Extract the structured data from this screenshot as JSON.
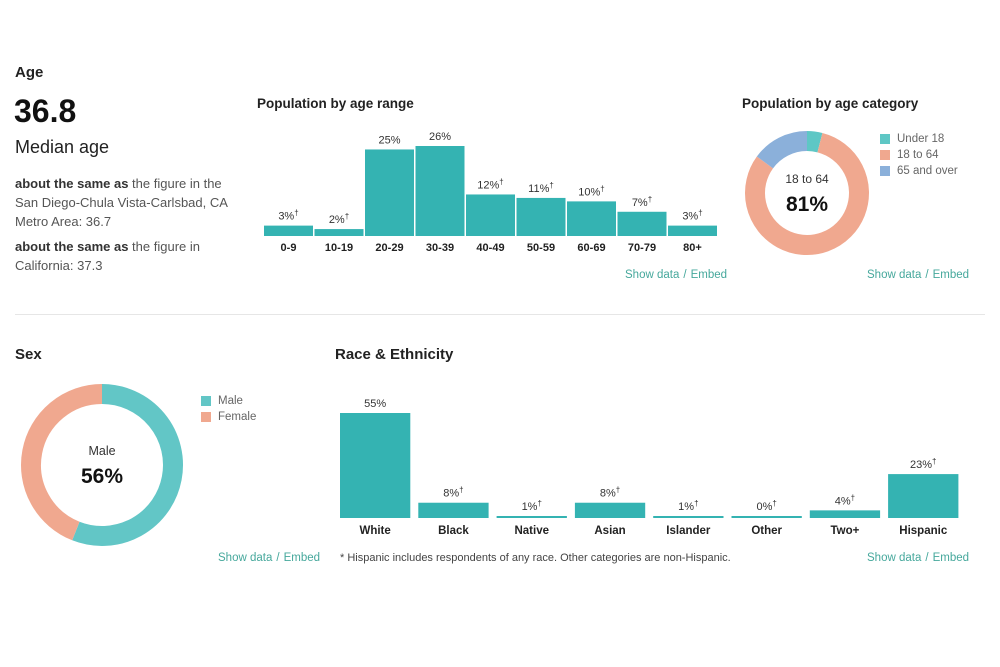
{
  "age": {
    "section_title": "Age",
    "median_value": "36.8",
    "median_label": "Median age",
    "compare1_bold": "about the same as",
    "compare1_text": " the figure in the San Diego-Chula Vista-Carlsbad, CA Metro Area: 36.7",
    "compare2_bold": "about the same as",
    "compare2_text": " the figure in California: 37.3"
  },
  "links": {
    "show_data": "Show data",
    "sep": "/",
    "embed": "Embed"
  },
  "sex": {
    "section_title": "Sex",
    "center_label": "Male",
    "center_value": "56%"
  },
  "race": {
    "section_title": "Race & Ethnicity",
    "footnote": "* Hispanic includes respondents of any race. Other categories are non-Hispanic."
  },
  "colors": {
    "teal": "#34b3b2",
    "teal_light": "#62c6c6",
    "salmon": "#f0a88f",
    "blue": "#8bb0da",
    "link": "#46a89c"
  },
  "chart_data": [
    {
      "id": "age-range",
      "type": "bar",
      "title": "Population by age range",
      "categories": [
        "0-9",
        "10-19",
        "20-29",
        "30-39",
        "40-49",
        "50-59",
        "60-69",
        "70-79",
        "80+"
      ],
      "values": [
        3,
        2,
        25,
        26,
        12,
        11,
        10,
        7,
        3
      ],
      "labels": [
        "3%",
        "2%",
        "25%",
        "26%",
        "12%",
        "11%",
        "10%",
        "7%",
        "3%"
      ],
      "dagger": [
        true,
        true,
        false,
        false,
        true,
        true,
        true,
        true,
        true
      ],
      "ylim": [
        0,
        26
      ]
    },
    {
      "id": "age-category",
      "type": "pie",
      "title": "Population by age category",
      "categories": [
        "Under 18",
        "18 to 64",
        "65 and over"
      ],
      "values": [
        4,
        81,
        15
      ],
      "center_label": "18 to 64",
      "center_value": "81%",
      "legend": "top-right"
    },
    {
      "id": "sex",
      "type": "pie",
      "title": "Sex",
      "categories": [
        "Male",
        "Female"
      ],
      "values": [
        56,
        44
      ],
      "center_label": "Male",
      "center_value": "56%",
      "legend": "top-right"
    },
    {
      "id": "race",
      "type": "bar",
      "title": "Race & Ethnicity",
      "categories": [
        "White",
        "Black",
        "Native",
        "Asian",
        "Islander",
        "Other",
        "Two+",
        "Hispanic"
      ],
      "values": [
        55,
        8,
        1,
        8,
        1,
        0,
        4,
        23
      ],
      "labels": [
        "55%",
        "8%",
        "1%",
        "8%",
        "1%",
        "0%",
        "4%",
        "23%"
      ],
      "dagger": [
        false,
        true,
        true,
        true,
        true,
        true,
        true,
        true
      ],
      "ylim": [
        0,
        55
      ]
    }
  ]
}
